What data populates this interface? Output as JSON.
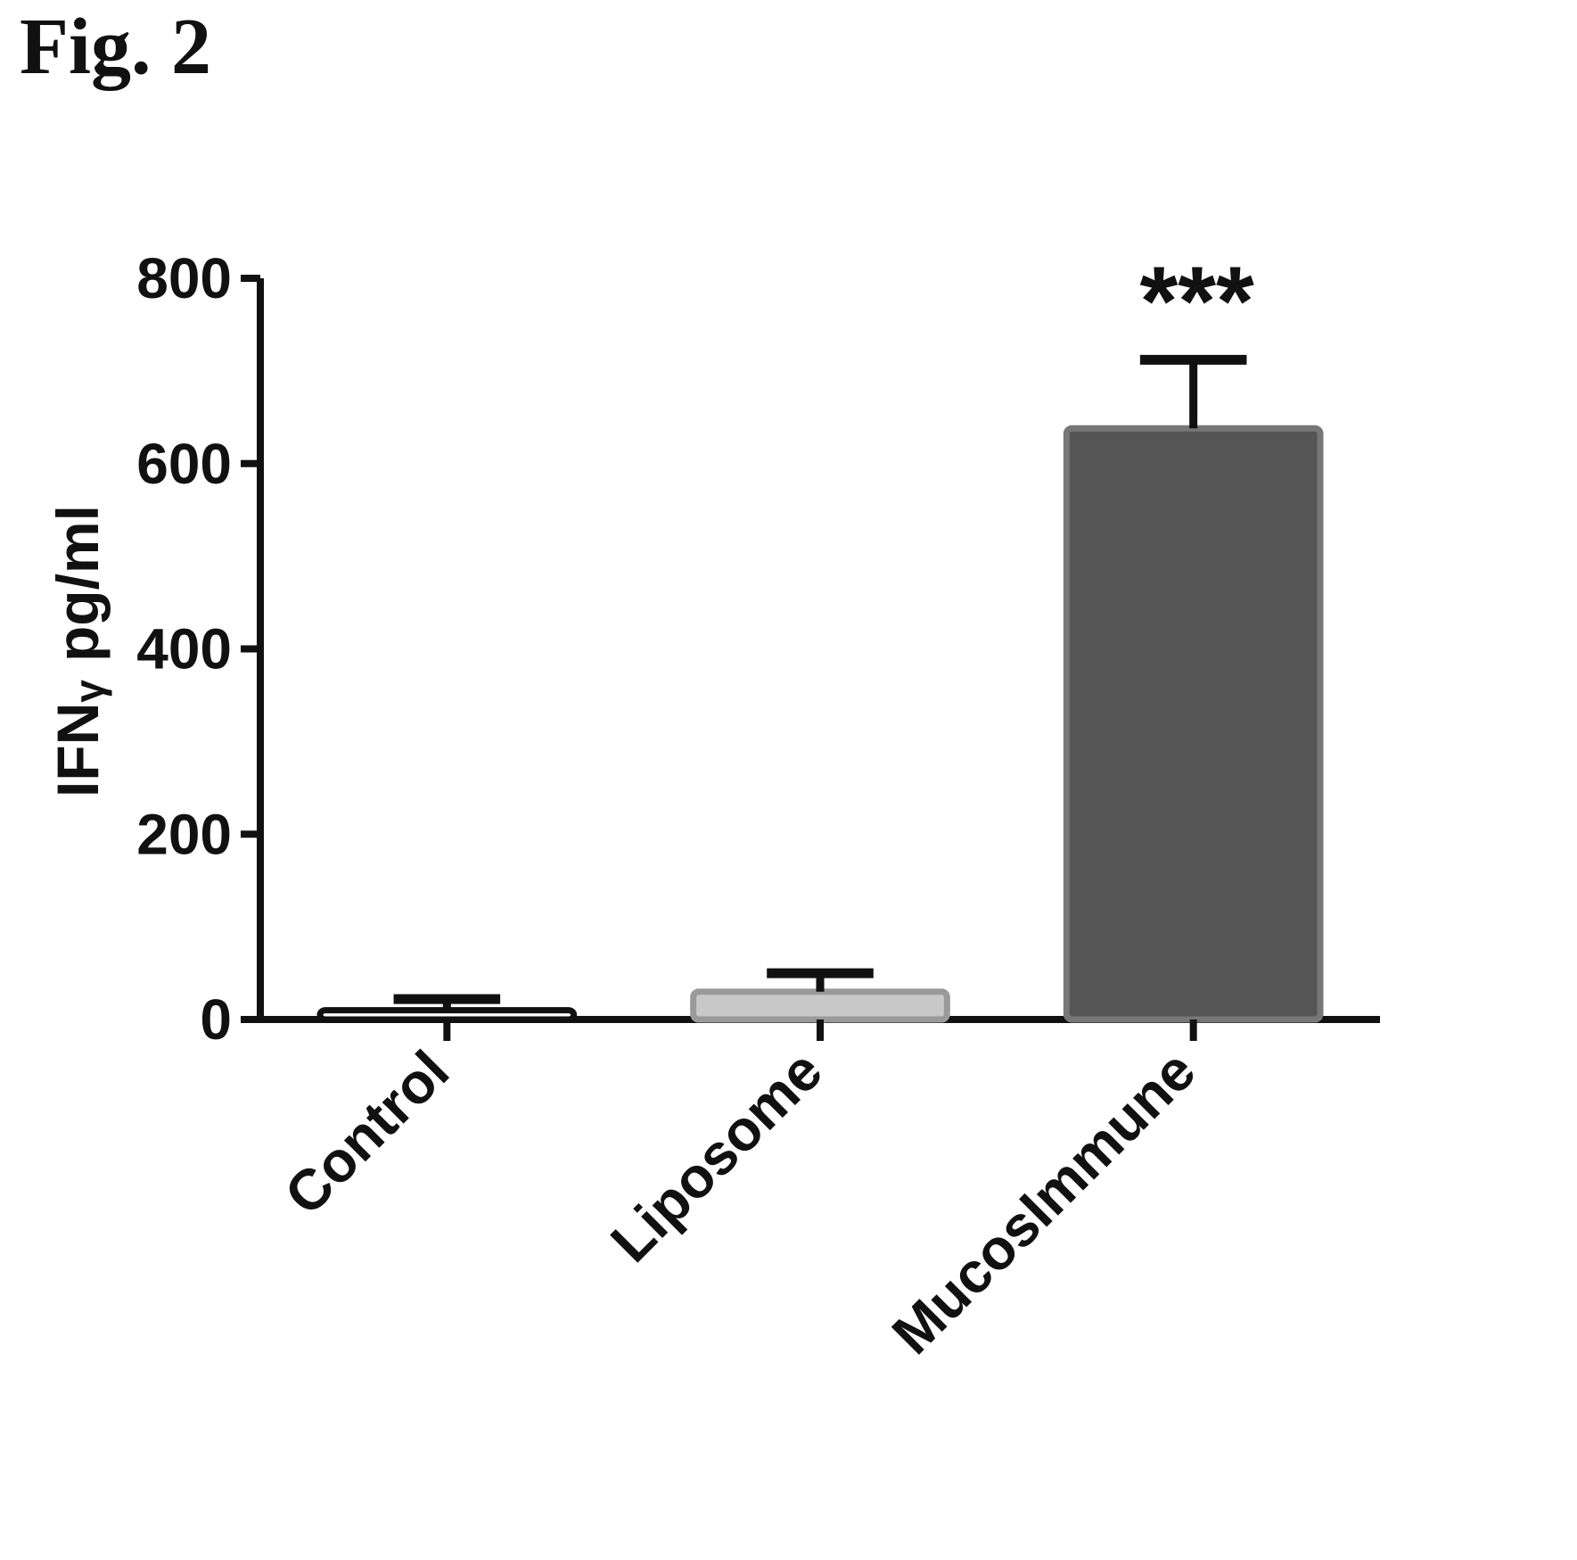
{
  "figure_label": "Fig. 2",
  "chart_data": {
    "type": "bar",
    "categories": [
      "Control",
      "Liposome",
      "MucosImmune"
    ],
    "values": [
      10,
      30,
      638
    ],
    "error_upper": [
      22,
      50,
      712
    ],
    "significance": [
      "",
      "",
      "***"
    ],
    "xlabel": "",
    "ylabel_main": "IFN",
    "ylabel_symbol": "γ",
    "ylabel_unit": "pg/ml",
    "ylim": [
      0,
      800
    ],
    "yticks": [
      0,
      200,
      400,
      600,
      800
    ],
    "grid": false,
    "colors": {
      "bars": [
        "#ffffff",
        "#c8c8c8",
        "#555555"
      ],
      "bar_edges": [
        "#111111",
        "#9a9a9a",
        "#777777"
      ],
      "axis": "#111111"
    }
  }
}
